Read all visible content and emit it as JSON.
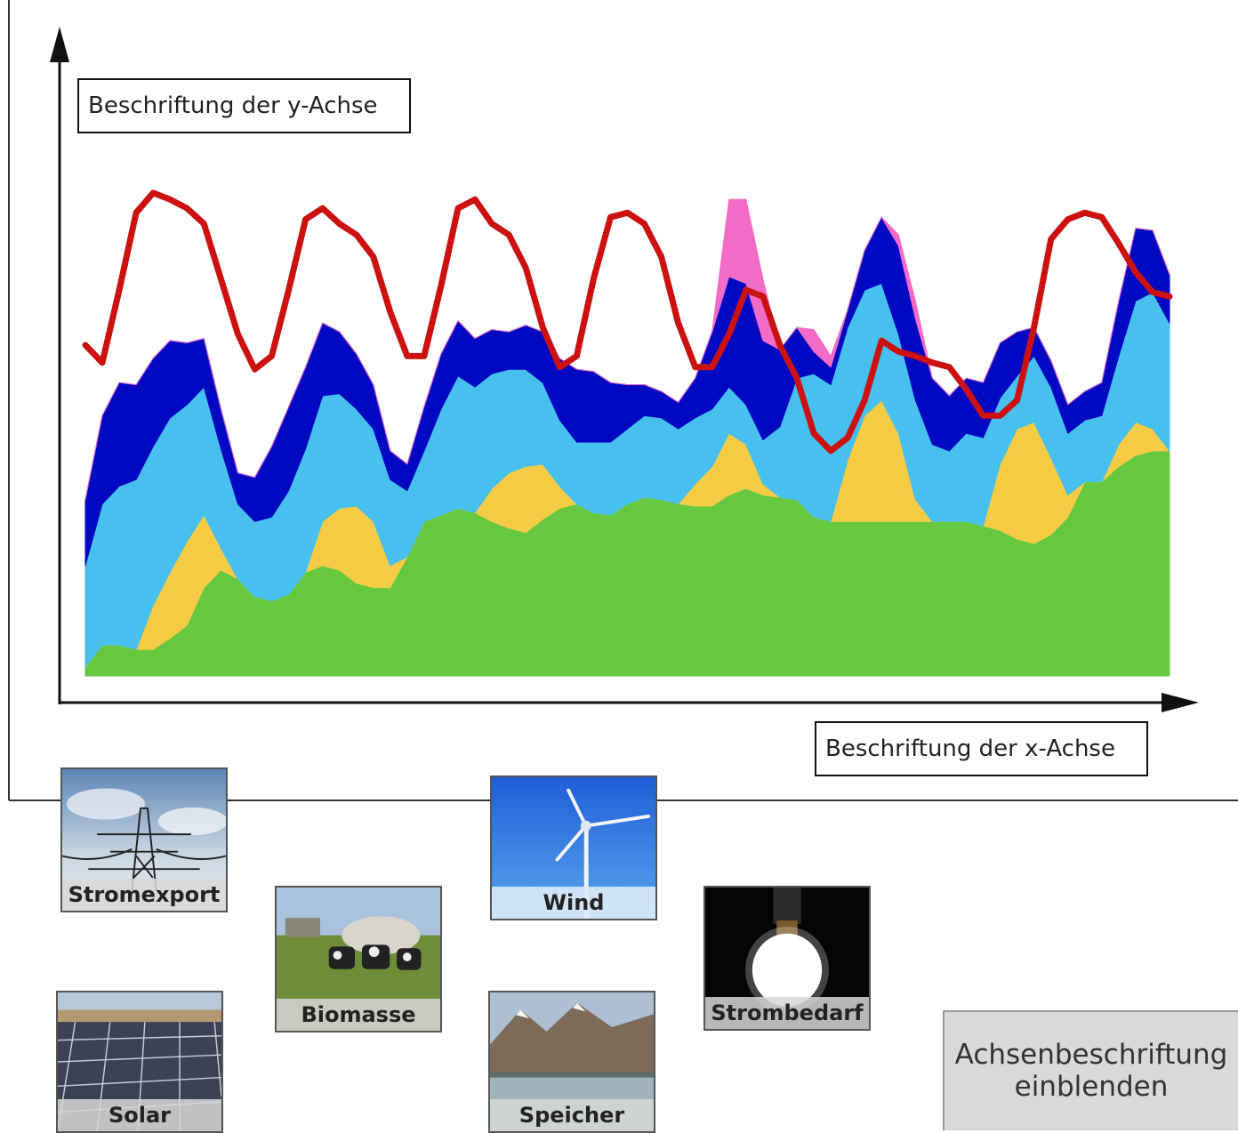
{
  "chart": {
    "y_axis_label": "Beschriftung der y-Achse",
    "x_axis_label": "Beschriftung der x-Achse"
  },
  "chart_data": {
    "type": "area",
    "stacked": true,
    "title": "",
    "xlabel": "Beschriftung der x-Achse",
    "ylabel": "Beschriftung der y-Achse",
    "x": [
      0,
      1,
      2,
      3,
      4,
      5,
      6,
      7,
      8,
      9,
      10,
      11,
      12,
      13,
      14,
      15,
      16,
      17,
      18,
      19,
      20,
      21,
      22,
      23,
      24,
      25,
      26,
      27,
      28,
      29,
      30,
      31,
      32,
      33,
      34,
      35,
      36,
      37,
      38,
      39,
      40,
      41,
      42,
      43,
      44,
      45,
      46,
      47,
      48,
      49,
      50,
      51,
      52,
      53,
      54,
      55,
      56,
      57,
      58,
      59,
      60,
      61,
      62,
      63,
      64
    ],
    "series": [
      {
        "name": "Biomasse",
        "color": "#66c83e",
        "values": [
          4,
          14,
          14,
          12,
          12,
          17,
          23,
          40,
          48,
          44,
          36,
          34,
          37,
          47,
          50,
          48,
          42,
          40,
          40,
          54,
          70,
          73,
          76,
          74,
          70,
          67,
          65,
          71,
          76,
          78,
          74,
          73,
          78,
          81,
          80,
          78,
          77,
          77,
          82,
          85,
          82,
          81,
          80,
          72,
          70,
          70,
          70,
          70,
          70,
          70,
          70,
          70,
          70,
          68,
          66,
          62,
          60,
          64,
          72,
          88,
          88,
          95,
          100,
          102,
          102
        ]
      },
      {
        "name": "Solar",
        "color": "#f6cc45",
        "values": [
          0,
          0,
          0,
          0,
          20,
          30,
          38,
          33,
          10,
          0,
          0,
          0,
          0,
          0,
          20,
          28,
          35,
          30,
          10,
          0,
          0,
          0,
          0,
          0,
          15,
          25,
          30,
          25,
          10,
          0,
          0,
          0,
          0,
          0,
          0,
          0,
          10,
          18,
          28,
          20,
          5,
          0,
          0,
          0,
          0,
          28,
          48,
          55,
          40,
          10,
          0,
          0,
          0,
          0,
          30,
          50,
          55,
          35,
          10,
          0,
          0,
          10,
          15,
          10,
          0
        ]
      },
      {
        "name": "Wind",
        "color": "#47c0f0",
        "values": [
          46,
          64,
          72,
          77,
          72,
          70,
          62,
          58,
          45,
          34,
          34,
          38,
          47,
          56,
          57,
          52,
          44,
          42,
          39,
          30,
          32,
          48,
          60,
          57,
          52,
          47,
          44,
          37,
          30,
          28,
          32,
          33,
          34,
          37,
          37,
          34,
          30,
          26,
          21,
          18,
          20,
          32,
          55,
          65,
          62,
          60,
          57,
          53,
          45,
          45,
          35,
          32,
          40,
          40,
          30,
          24,
          30,
          32,
          28,
          28,
          30,
          40,
          55,
          62,
          58
        ]
      },
      {
        "name": "Speicher",
        "color": "#0009c2",
        "values": [
          30,
          40,
          47,
          43,
          40,
          35,
          28,
          22,
          18,
          14,
          20,
          32,
          38,
          37,
          33,
          28,
          25,
          20,
          13,
          12,
          20,
          25,
          25,
          22,
          20,
          17,
          20,
          23,
          28,
          33,
          32,
          27,
          20,
          14,
          12,
          12,
          18,
          35,
          50,
          55,
          45,
          35,
          23,
          10,
          8,
          8,
          18,
          30,
          40,
          37,
          30,
          25,
          25,
          25,
          25,
          20,
          13,
          12,
          13,
          13,
          15,
          25,
          33,
          28,
          22
        ]
      },
      {
        "name": "Stromexport",
        "color": "#f26bc6",
        "values": [
          0,
          0,
          0,
          0,
          0,
          0,
          0,
          0,
          0,
          0,
          0,
          0,
          0,
          0,
          0,
          0,
          0,
          0,
          0,
          0,
          0,
          0,
          0,
          0,
          0,
          0,
          0,
          0,
          0,
          0,
          0,
          0,
          0,
          0,
          0,
          0,
          0,
          0,
          35,
          38,
          28,
          0,
          0,
          10,
          5,
          0,
          0,
          0,
          5,
          8,
          0,
          0,
          0,
          0,
          0,
          0,
          0,
          0,
          0,
          0,
          0,
          0,
          0,
          0,
          0
        ]
      },
      {
        "name": "Strombedarf",
        "type": "line",
        "color": "#cc1111",
        "values": [
          150,
          142,
          175,
          210,
          219,
          216,
          212,
          205,
          180,
          155,
          139,
          145,
          175,
          207,
          212,
          205,
          200,
          190,
          165,
          145,
          145,
          177,
          212,
          216,
          205,
          200,
          185,
          158,
          140,
          145,
          180,
          208,
          210,
          205,
          190,
          160,
          140,
          140,
          155,
          175,
          172,
          150,
          135,
          110,
          102,
          108,
          125,
          152,
          147,
          145,
          142,
          140,
          130,
          118,
          118,
          125,
          158,
          198,
          207,
          210,
          208,
          196,
          183,
          174,
          172
        ]
      }
    ]
  },
  "cards": [
    {
      "label": "Stromexport"
    },
    {
      "label": "Biomasse"
    },
    {
      "label": "Wind"
    },
    {
      "label": "Strombedarf"
    },
    {
      "label": "Solar"
    },
    {
      "label": "Speicher"
    }
  ],
  "button": {
    "line1": "Achsenbeschriftung",
    "line2": "einblenden"
  },
  "colors": {
    "accent_line": "#cc1111",
    "axis": "#111111",
    "divider": "#333333"
  }
}
